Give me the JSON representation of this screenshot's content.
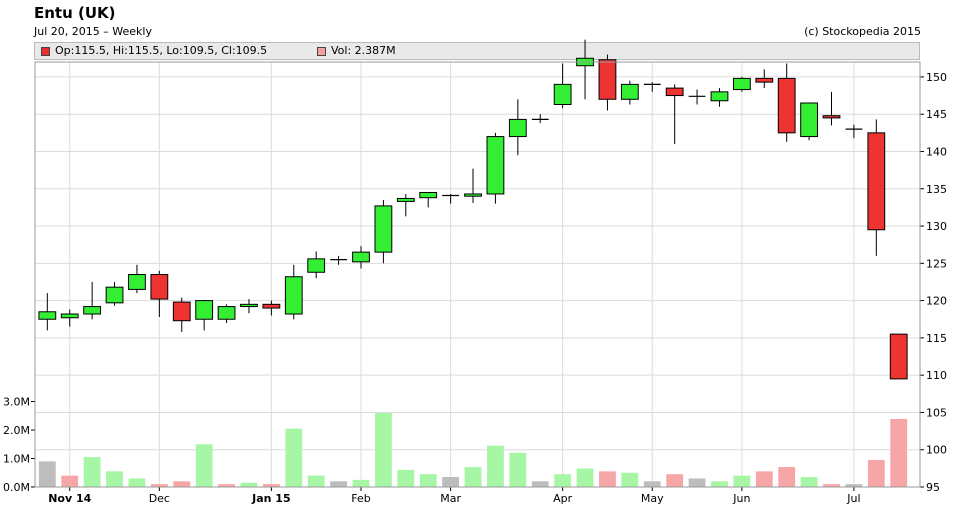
{
  "header": {
    "title": "Entu (UK)",
    "subtitle": "Jul 20, 2015  –  Weekly",
    "copyright": "(c) Stockopedia 2015"
  },
  "legend": {
    "ohlc_label": "Op:115.5, Hi:115.5, Lo:109.5, Cl:109.5",
    "ohlc_color": "#e83030",
    "vol_label": "Vol: 2.387M",
    "vol_color": "#f4a0a0"
  },
  "colors": {
    "up": "#33ee33",
    "down": "#ee3333",
    "flat": "#000000",
    "vol_up": "#a6f6a6",
    "vol_down": "#f6a6a6",
    "vol_neutral": "#bdbdbd",
    "grid": "#dcdcdc"
  },
  "chart_data": {
    "type": "candlestick",
    "title": "Entu (UK)",
    "y_axis": {
      "side": "right",
      "range": [
        95,
        152
      ],
      "ticks": [
        95,
        100,
        105,
        110,
        115,
        120,
        125,
        130,
        135,
        140,
        145,
        150
      ]
    },
    "volume_axis": {
      "side": "left",
      "range": [
        0,
        3.3
      ],
      "ticks": [
        0,
        1,
        2,
        3
      ],
      "tick_labels": [
        "0.0M",
        "1.0M",
        "2.0M",
        "3.0M"
      ]
    },
    "x_axis": {
      "tick_labels": [
        "Nov 14",
        "Dec",
        "Jan 15",
        "Feb",
        "Mar",
        "Apr",
        "May",
        "Jun",
        "Jul"
      ],
      "tick_weeks": [
        1,
        5,
        10,
        14,
        18,
        23,
        27,
        31,
        36
      ],
      "bold_labels": [
        "Nov 14",
        "Jan 15"
      ]
    },
    "grid": true,
    "candles": [
      {
        "o": 117.5,
        "h": 121.0,
        "l": 116.0,
        "c": 118.5,
        "v": 0.9,
        "vc": "neutral"
      },
      {
        "o": 117.7,
        "h": 118.8,
        "l": 116.5,
        "c": 118.2,
        "v": 0.4,
        "vc": "down"
      },
      {
        "o": 118.2,
        "h": 122.5,
        "l": 117.5,
        "c": 119.2,
        "v": 1.05,
        "vc": "up"
      },
      {
        "o": 119.7,
        "h": 122.5,
        "l": 119.3,
        "c": 121.8,
        "v": 0.55,
        "vc": "up"
      },
      {
        "o": 121.5,
        "h": 124.8,
        "l": 121.0,
        "c": 123.5,
        "v": 0.3,
        "vc": "up"
      },
      {
        "o": 123.5,
        "h": 124.0,
        "l": 117.8,
        "c": 120.2,
        "v": 0.1,
        "vc": "down"
      },
      {
        "o": 119.8,
        "h": 120.4,
        "l": 115.8,
        "c": 117.3,
        "v": 0.2,
        "vc": "down"
      },
      {
        "o": 117.5,
        "h": 120.1,
        "l": 116.0,
        "c": 120.0,
        "v": 1.5,
        "vc": "up"
      },
      {
        "o": 117.5,
        "h": 119.5,
        "l": 117.0,
        "c": 119.2,
        "v": 0.1,
        "vc": "down"
      },
      {
        "o": 119.2,
        "h": 120.2,
        "l": 118.3,
        "c": 119.5,
        "v": 0.15,
        "vc": "up"
      },
      {
        "o": 119.5,
        "h": 120.0,
        "l": 118.0,
        "c": 119.0,
        "v": 0.1,
        "vc": "down"
      },
      {
        "o": 118.2,
        "h": 124.8,
        "l": 117.5,
        "c": 123.2,
        "v": 2.05,
        "vc": "up"
      },
      {
        "o": 123.8,
        "h": 126.6,
        "l": 123.0,
        "c": 125.6,
        "v": 0.4,
        "vc": "up"
      },
      {
        "o": 125.5,
        "h": 126.0,
        "l": 124.8,
        "c": 125.5,
        "v": 0.2,
        "vc": "neutral"
      },
      {
        "o": 125.2,
        "h": 127.3,
        "l": 124.3,
        "c": 126.5,
        "v": 0.25,
        "vc": "up"
      },
      {
        "o": 126.5,
        "h": 133.5,
        "l": 125.0,
        "c": 132.7,
        "v": 2.6,
        "vc": "up"
      },
      {
        "o": 133.3,
        "h": 134.3,
        "l": 131.3,
        "c": 133.7,
        "v": 0.6,
        "vc": "up"
      },
      {
        "o": 133.8,
        "h": 134.3,
        "l": 132.5,
        "c": 134.5,
        "v": 0.45,
        "vc": "up"
      },
      {
        "o": 134.1,
        "h": 134.3,
        "l": 133.0,
        "c": 134.1,
        "v": 0.35,
        "vc": "neutral"
      },
      {
        "o": 134.0,
        "h": 137.7,
        "l": 133.1,
        "c": 134.3,
        "v": 0.7,
        "vc": "up"
      },
      {
        "o": 134.3,
        "h": 142.5,
        "l": 133.0,
        "c": 142.0,
        "v": 1.45,
        "vc": "up"
      },
      {
        "o": 142.0,
        "h": 147.0,
        "l": 139.5,
        "c": 144.3,
        "v": 1.2,
        "vc": "up"
      },
      {
        "o": 144.3,
        "h": 145.0,
        "l": 143.8,
        "c": 144.3,
        "v": 0.2,
        "vc": "neutral"
      },
      {
        "o": 146.3,
        "h": 151.8,
        "l": 145.8,
        "c": 149.0,
        "v": 0.45,
        "vc": "up"
      },
      {
        "o": 151.5,
        "h": 155.0,
        "l": 147.0,
        "c": 152.5,
        "v": 0.65,
        "vc": "up"
      },
      {
        "o": 152.3,
        "h": 153.0,
        "l": 145.5,
        "c": 147.0,
        "v": 0.55,
        "vc": "down"
      },
      {
        "o": 147.0,
        "h": 149.5,
        "l": 146.3,
        "c": 149.0,
        "v": 0.5,
        "vc": "up"
      },
      {
        "o": 149.0,
        "h": 149.3,
        "l": 148.0,
        "c": 149.0,
        "v": 0.2,
        "vc": "neutral"
      },
      {
        "o": 148.5,
        "h": 149.0,
        "l": 141.0,
        "c": 147.5,
        "v": 0.45,
        "vc": "down"
      },
      {
        "o": 147.5,
        "h": 148.3,
        "l": 146.3,
        "c": 147.4,
        "v": 0.3,
        "vc": "neutral"
      },
      {
        "o": 146.8,
        "h": 148.5,
        "l": 146.0,
        "c": 148.0,
        "v": 0.2,
        "vc": "up"
      },
      {
        "o": 148.3,
        "h": 150.0,
        "l": 148.0,
        "c": 149.8,
        "v": 0.4,
        "vc": "up"
      },
      {
        "o": 149.8,
        "h": 151.0,
        "l": 148.5,
        "c": 149.3,
        "v": 0.55,
        "vc": "down"
      },
      {
        "o": 149.8,
        "h": 151.8,
        "l": 141.3,
        "c": 142.5,
        "v": 0.7,
        "vc": "down"
      },
      {
        "o": 142.0,
        "h": 146.0,
        "l": 141.5,
        "c": 146.5,
        "v": 0.35,
        "vc": "up"
      },
      {
        "o": 144.8,
        "h": 148.0,
        "l": 143.5,
        "c": 144.5,
        "v": 0.1,
        "vc": "down"
      },
      {
        "o": 143.0,
        "h": 143.6,
        "l": 141.8,
        "c": 143.0,
        "v": 0.1,
        "vc": "neutral"
      },
      {
        "o": 142.5,
        "h": 144.3,
        "l": 126.0,
        "c": 129.5,
        "v": 0.95,
        "vc": "down"
      },
      {
        "o": 115.5,
        "h": 115.5,
        "l": 109.5,
        "c": 109.5,
        "v": 2.387,
        "vc": "down"
      }
    ]
  }
}
